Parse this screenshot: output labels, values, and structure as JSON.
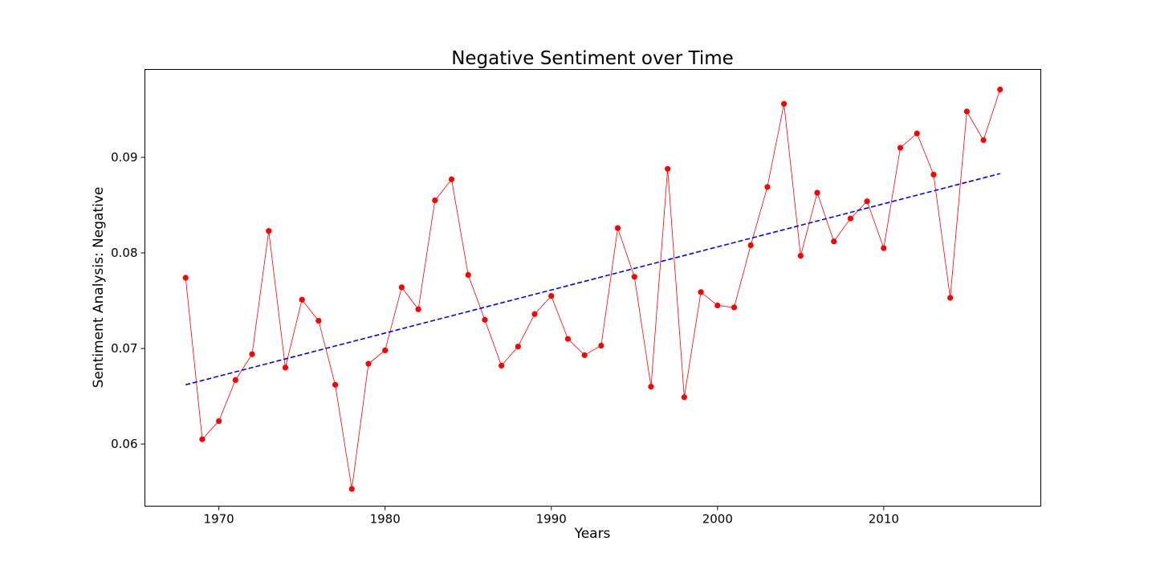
{
  "chart_data": {
    "type": "line",
    "title": "Negative Sentiment over Time",
    "xlabel": "Years",
    "ylabel": "Sentiment Analysis: Negative",
    "xlim": [
      1965.55,
      2019.45
    ],
    "ylim": [
      0.0535,
      0.0992
    ],
    "xticks": [
      1970,
      1980,
      1990,
      2000,
      2010
    ],
    "yticks": [
      0.06,
      0.07,
      0.08,
      0.09
    ],
    "ytick_labels": [
      "0.06",
      "0.07",
      "0.08",
      "0.09"
    ],
    "grid": false,
    "series": [
      {
        "style": "red-line-with-markers",
        "color": "#ff0000",
        "x": [
          1968,
          1969,
          1970,
          1971,
          1972,
          1973,
          1974,
          1975,
          1976,
          1977,
          1978,
          1979,
          1980,
          1981,
          1982,
          1983,
          1984,
          1985,
          1986,
          1987,
          1988,
          1989,
          1990,
          1991,
          1992,
          1993,
          1994,
          1995,
          1996,
          1997,
          1998,
          1999,
          2000,
          2001,
          2002,
          2003,
          2004,
          2005,
          2006,
          2007,
          2008,
          2009,
          2010,
          2011,
          2012,
          2013,
          2014,
          2015,
          2016,
          2017
        ],
        "y": [
          0.0774,
          0.0605,
          0.0624,
          0.0667,
          0.0694,
          0.0823,
          0.068,
          0.0751,
          0.0729,
          0.0662,
          0.0553,
          0.0684,
          0.0698,
          0.0764,
          0.0741,
          0.0855,
          0.0877,
          0.0777,
          0.073,
          0.0682,
          0.0702,
          0.0736,
          0.0755,
          0.071,
          0.0693,
          0.0703,
          0.0826,
          0.0775,
          0.066,
          0.0888,
          0.0649,
          0.0759,
          0.0745,
          0.0743,
          0.0808,
          0.0869,
          0.0956,
          0.0797,
          0.0863,
          0.0812,
          0.0836,
          0.0854,
          0.0805,
          0.091,
          0.0925,
          0.0882,
          0.0753,
          0.0948,
          0.0918,
          0.0971
        ]
      },
      {
        "style": "blue-dashed-trend",
        "color": "#0000ff",
        "x": [
          1968,
          2017
        ],
        "y": [
          0.0662,
          0.0883
        ]
      }
    ]
  }
}
